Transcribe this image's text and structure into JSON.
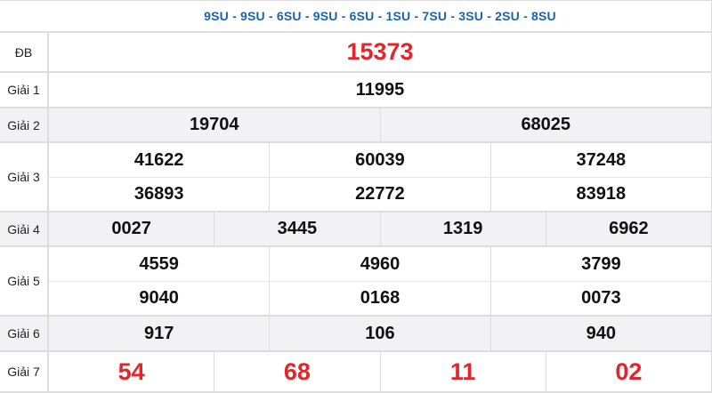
{
  "header": {
    "codes": "9SU - 9SU - 6SU - 9SU - 6SU - 1SU - 7SU - 3SU - 2SU - 8SU"
  },
  "labels": {
    "db": "ĐB",
    "g1": "Giải 1",
    "g2": "Giải 2",
    "g3": "Giải 3",
    "g4": "Giải 4",
    "g5": "Giải 5",
    "g6": "Giải 6",
    "g7": "Giải 7"
  },
  "prizes": {
    "db": "15373",
    "g1": "11995",
    "g2": [
      "19704",
      "68025"
    ],
    "g3": [
      "41622",
      "60039",
      "37248",
      "36893",
      "22772",
      "83918"
    ],
    "g4": [
      "0027",
      "3445",
      "1319",
      "6962"
    ],
    "g5": [
      "4559",
      "4960",
      "3799",
      "9040",
      "0168",
      "0073"
    ],
    "g6": [
      "917",
      "106",
      "940"
    ],
    "g7": [
      "54",
      "68",
      "11",
      "02"
    ]
  },
  "colors": {
    "highlight": "#e1262d",
    "header": "#1b64ad"
  }
}
